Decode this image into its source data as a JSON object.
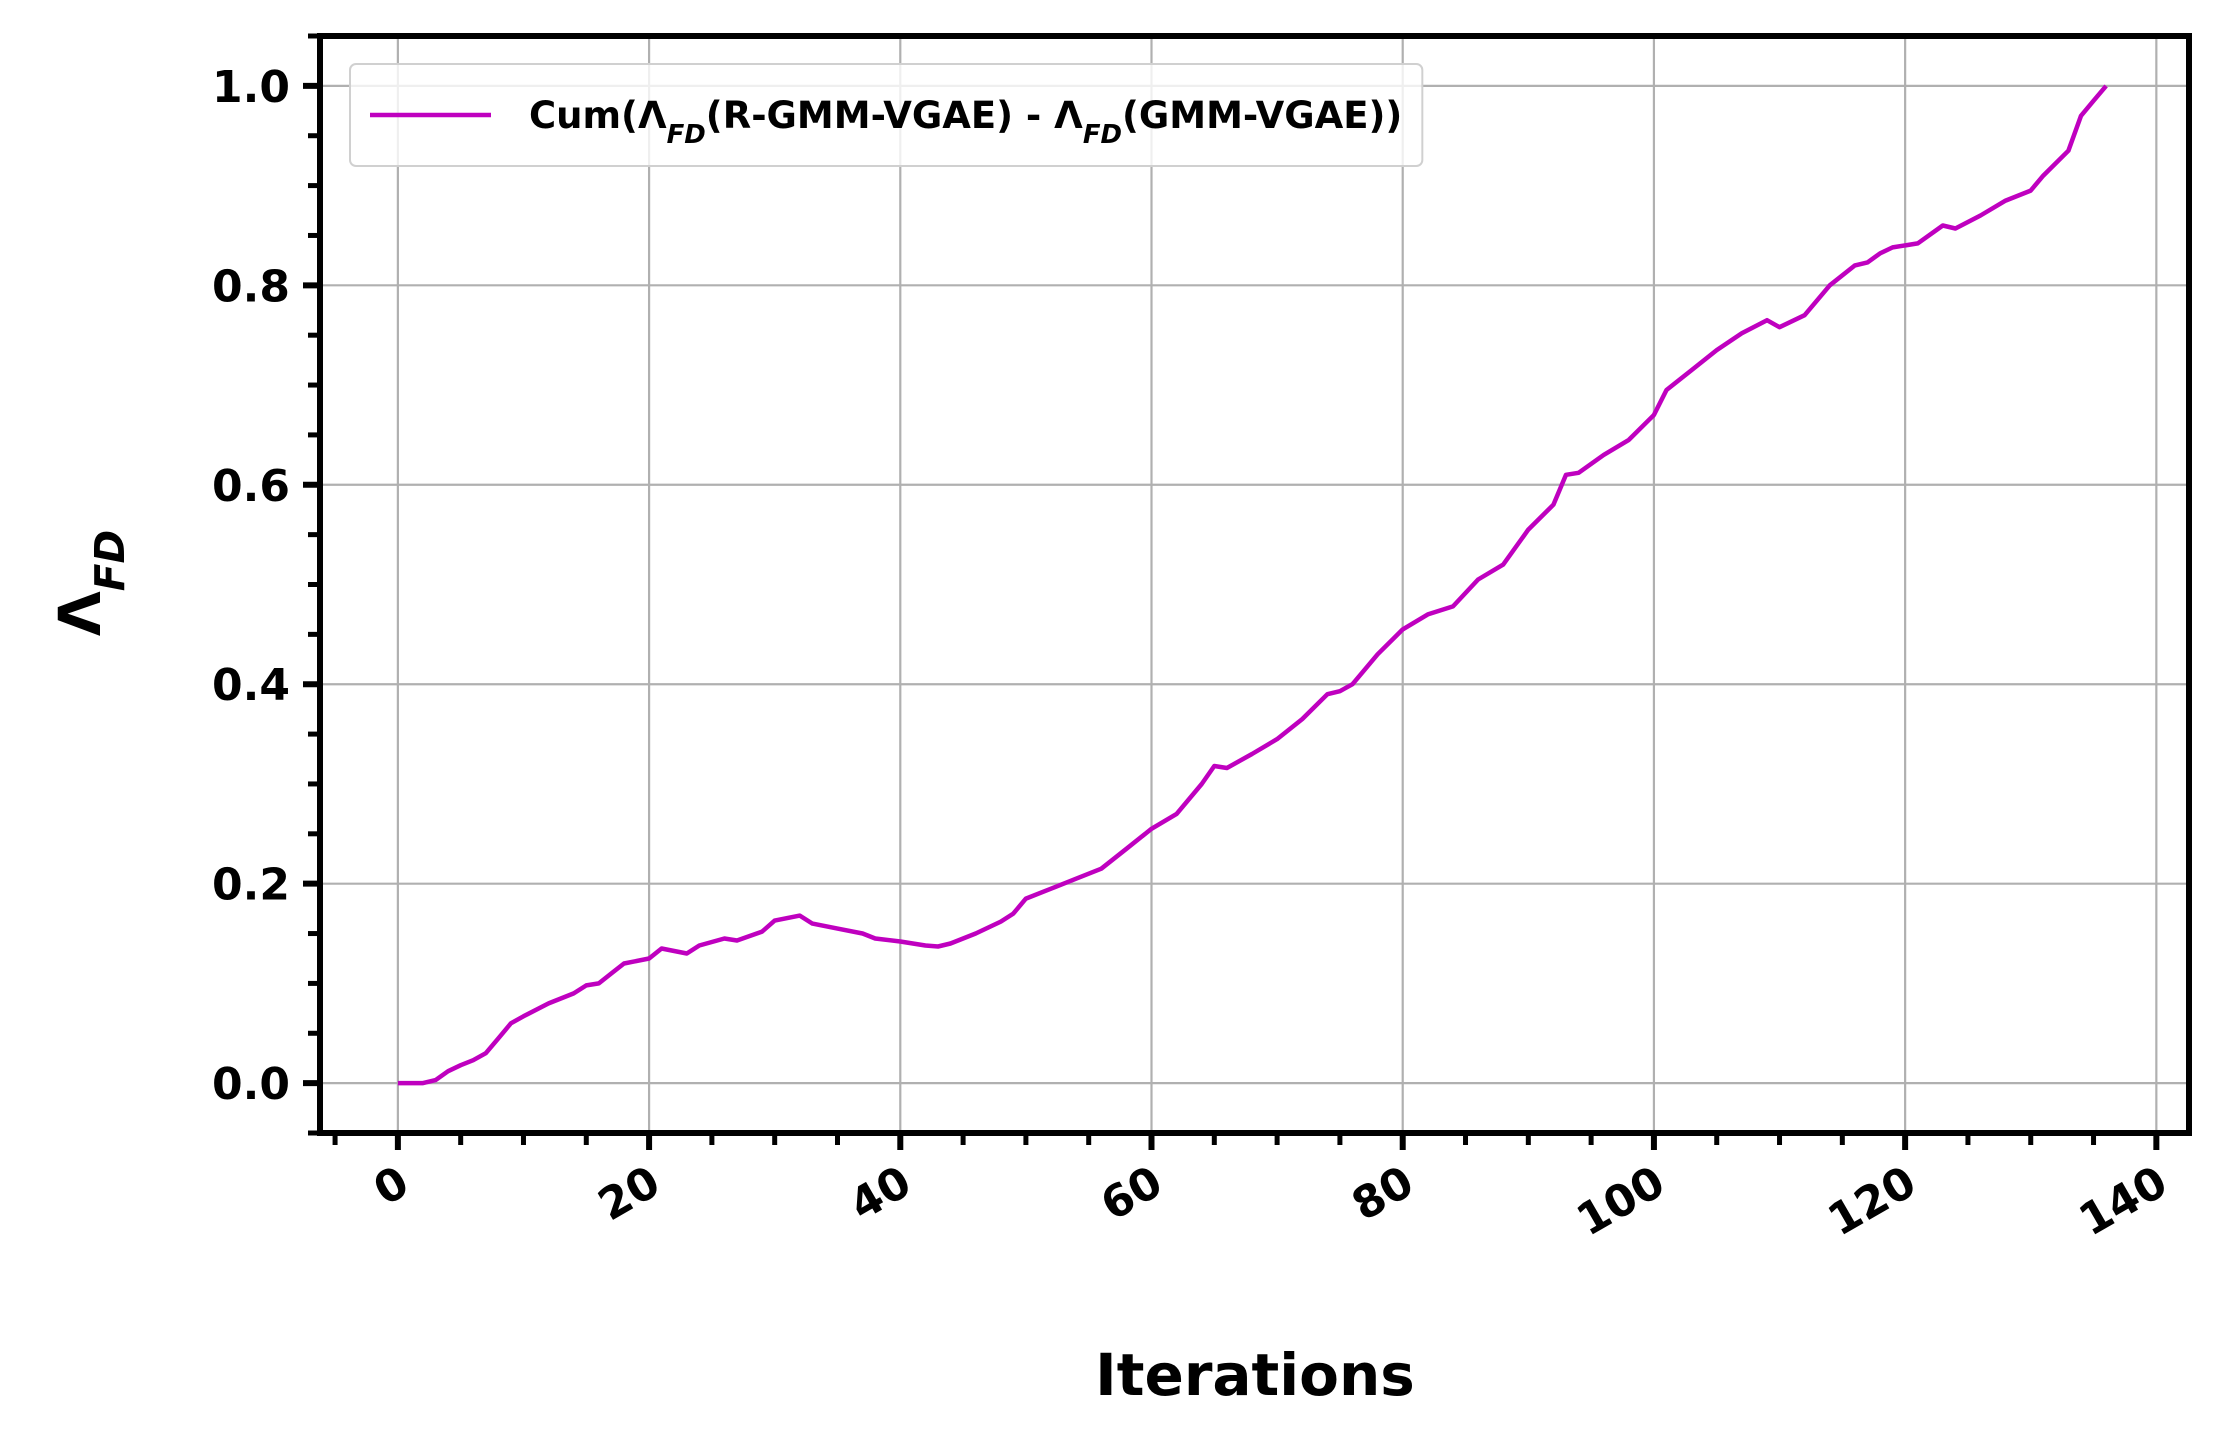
{
  "chart_data": {
    "type": "line",
    "x_label": "Iterations",
    "y_label": "ΛFD",
    "x": [
      0,
      2,
      3,
      4,
      5,
      6,
      7,
      8,
      9,
      10,
      12,
      14,
      15,
      16,
      17,
      18,
      20,
      21,
      23,
      24,
      26,
      27,
      29,
      30,
      32,
      33,
      35,
      37,
      38,
      40,
      42,
      43,
      44,
      46,
      48,
      49,
      50,
      52,
      54,
      56,
      58,
      60,
      62,
      64,
      65,
      66,
      68,
      70,
      72,
      74,
      75,
      76,
      78,
      80,
      82,
      84,
      86,
      88,
      90,
      92,
      93,
      94,
      96,
      98,
      100,
      101,
      103,
      105,
      107,
      109,
      110,
      112,
      114,
      116,
      117,
      118,
      119,
      121,
      123,
      124,
      126,
      128,
      130,
      131,
      133,
      134,
      135,
      136
    ],
    "series": [
      {
        "name": "Cum(ΛFD(R-GMM-VGAE) - ΛFD(GMM-VGAE))",
        "color": "#bf00bf",
        "values": [
          0,
          0,
          0.003,
          0.012,
          0.018,
          0.023,
          0.03,
          0.045,
          0.06,
          0.067,
          0.08,
          0.09,
          0.098,
          0.1,
          0.11,
          0.12,
          0.125,
          0.135,
          0.13,
          0.138,
          0.145,
          0.143,
          0.152,
          0.163,
          0.168,
          0.16,
          0.155,
          0.15,
          0.145,
          0.142,
          0.138,
          0.137,
          0.14,
          0.15,
          0.162,
          0.17,
          0.185,
          0.195,
          0.205,
          0.215,
          0.235,
          0.255,
          0.27,
          0.3,
          0.318,
          0.316,
          0.33,
          0.345,
          0.365,
          0.39,
          0.393,
          0.4,
          0.43,
          0.455,
          0.47,
          0.478,
          0.505,
          0.52,
          0.555,
          0.58,
          0.61,
          0.612,
          0.63,
          0.645,
          0.67,
          0.695,
          0.715,
          0.735,
          0.752,
          0.765,
          0.758,
          0.77,
          0.8,
          0.82,
          0.823,
          0.832,
          0.838,
          0.842,
          0.86,
          0.857,
          0.87,
          0.885,
          0.895,
          0.91,
          0.935,
          0.97,
          0.985,
          1.0
        ]
      }
    ],
    "xlim": [
      -6.2,
      142.6
    ],
    "ylim": [
      -0.05,
      1.05
    ],
    "xticks": [
      0,
      20,
      40,
      60,
      80,
      100,
      120,
      140
    ],
    "yticks": [
      {
        "value": 0,
        "label": "0.0"
      },
      0.2,
      0.4,
      0.6,
      0.8,
      {
        "value": 1,
        "label": "1.0"
      }
    ],
    "x_minor_ticks": [
      -5,
      5,
      10,
      15,
      25,
      30,
      35,
      45,
      50,
      55,
      65,
      70,
      75,
      85,
      90,
      95,
      105,
      110,
      115,
      125,
      130,
      135
    ],
    "y_minor_ticks": [
      -0.05,
      0.05,
      0.1,
      0.15,
      0.25,
      0.3,
      0.35,
      0.45,
      0.5,
      0.55,
      0.65,
      0.7,
      0.75,
      0.85,
      0.9,
      0.95,
      1.05
    ],
    "grid": true,
    "legend_position": "upper left"
  }
}
